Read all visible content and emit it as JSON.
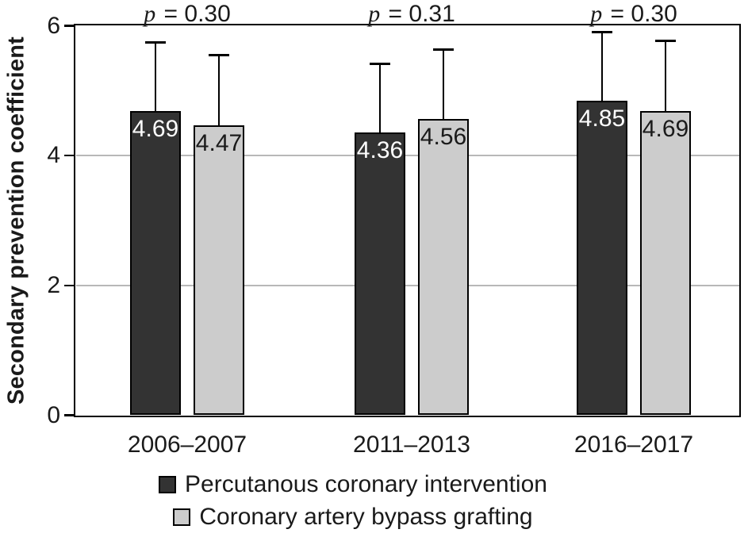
{
  "figure": {
    "background": "#ffffff",
    "text_color": "#1a1a1a"
  },
  "chart_data": {
    "type": "bar",
    "title": "",
    "xlabel": "",
    "ylabel": "Secondary prevention coefficient",
    "ylim": [
      0,
      6
    ],
    "yticks": [
      0,
      2,
      4,
      6
    ],
    "gridlines": [
      2,
      4
    ],
    "grid_color": "#b8b8b8",
    "frame_color": "#000000",
    "grid": "horizontal",
    "legend_position": "bottom-center",
    "categories": [
      "2006–2007",
      "2011–2013",
      "2016–2017"
    ],
    "p_labels": [
      "p = 0.30",
      "p = 0.31",
      "p = 0.30"
    ],
    "series": [
      {
        "name": "Percutanous coronary intervention",
        "color": "#333333",
        "border_color": "#000000",
        "label_color": "#ffffff",
        "values": [
          4.69,
          4.36,
          4.85
        ],
        "errors_up": [
          1.05,
          1.05,
          1.05
        ]
      },
      {
        "name": "Coronary artery bypass grafting",
        "color": "#cccccc",
        "border_color": "#000000",
        "label_color": "#1a1a1a",
        "values": [
          4.47,
          4.56,
          4.69
        ],
        "errors_up": [
          1.08,
          1.07,
          1.08
        ]
      }
    ]
  }
}
